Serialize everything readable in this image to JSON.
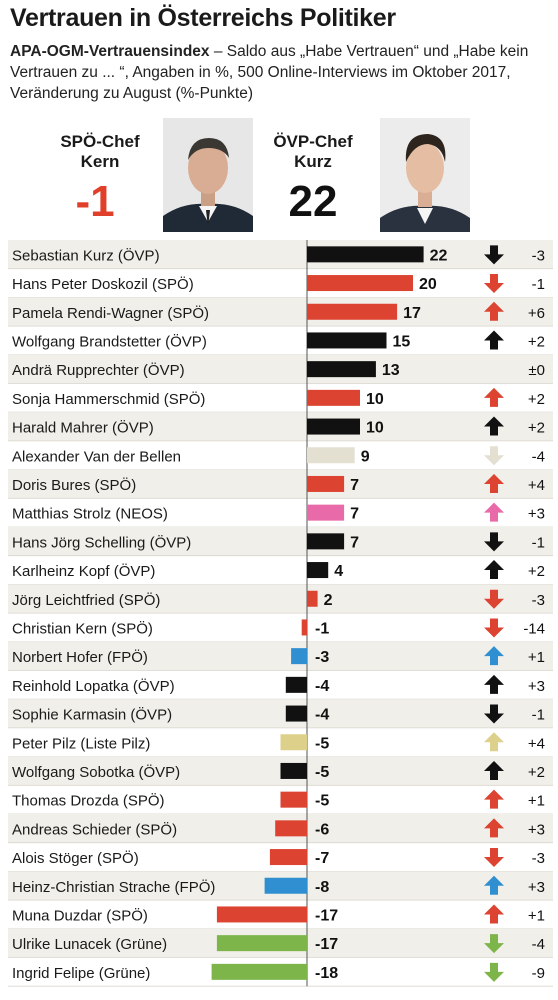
{
  "header": {
    "title": "Vertrauen in Österreichs Politiker",
    "subtitle_bold": "APA-OGM-Vertrauensindex",
    "subtitle_text": " – Saldo aus „Habe Vertrauen“ und „Habe kein Vertrauen zu ... “, Angaben in %, 500 Online-Interviews im Oktober 2017, Veränderung zu August (%-Punkte)"
  },
  "leaders": [
    {
      "label_line1": "SPÖ-Chef",
      "label_line2": "Kern",
      "value": "-1",
      "value_color": "#e0402a"
    },
    {
      "label_line1": "ÖVP-Chef",
      "label_line2": "Kurz",
      "value": "22",
      "value_color": "#111111"
    }
  ],
  "colors": {
    "OEVP": "#111111",
    "SPOE": "#dc4330",
    "GRUENE": "#7db54a",
    "NEOS": "#e86aa8",
    "FPOE": "#2f8fd0",
    "PILZ": "#ddd08a",
    "VDB": "#e3e0d2",
    "row_bg": "#f1efe9",
    "axis": "#555555"
  },
  "chart_data": {
    "type": "bar",
    "orientation": "horizontal",
    "categories": [
      "Sebastian Kurz (ÖVP)",
      "Hans Peter Doskozil (SPÖ)",
      "Pamela Rendi-Wagner (SPÖ)",
      "Wolfgang Brandstetter (ÖVP)",
      "Andrä Rupprechter (ÖVP)",
      "Sonja Hammerschmid (SPÖ)",
      "Harald Mahrer (ÖVP)",
      "Alexander Van der Bellen",
      "Doris Bures (SPÖ)",
      "Matthias Strolz (NEOS)",
      "Hans Jörg Schelling (ÖVP)",
      "Karlheinz Kopf (ÖVP)",
      "Jörg Leichtfried (SPÖ)",
      "Christian Kern (SPÖ)",
      "Norbert Hofer (FPÖ)",
      "Reinhold Lopatka (ÖVP)",
      "Sophie Karmasin (ÖVP)",
      "Peter Pilz (Liste Pilz)",
      "Wolfgang Sobotka (ÖVP)",
      "Thomas Drozda (SPÖ)",
      "Andreas Schieder (SPÖ)",
      "Alois Stöger (SPÖ)",
      "Heinz-Christian Strache (FPÖ)",
      "Muna Duzdar (SPÖ)",
      "Ulrike Lunacek (Grüne)",
      "Ingrid Felipe (Grüne)"
    ],
    "values": [
      22,
      20,
      17,
      15,
      13,
      10,
      10,
      9,
      7,
      7,
      7,
      4,
      2,
      -1,
      -3,
      -4,
      -4,
      -5,
      -5,
      -5,
      -6,
      -7,
      -8,
      -17,
      -17,
      -18
    ],
    "value_labels": [
      "22",
      "20",
      "17",
      "15",
      "13",
      "10",
      "10",
      "9",
      "7",
      "7",
      "7",
      "4",
      "2",
      "-1",
      "-3",
      "-4",
      "-4",
      "-5",
      "-5",
      "-5",
      "-6",
      "-7",
      "-8",
      "-17",
      "-17",
      "-18"
    ],
    "parties": [
      "OEVP",
      "SPOE",
      "SPOE",
      "OEVP",
      "OEVP",
      "SPOE",
      "OEVP",
      "VDB",
      "SPOE",
      "NEOS",
      "OEVP",
      "OEVP",
      "SPOE",
      "SPOE",
      "FPOE",
      "OEVP",
      "OEVP",
      "PILZ",
      "OEVP",
      "SPOE",
      "SPOE",
      "SPOE",
      "FPOE",
      "SPOE",
      "GRUENE",
      "GRUENE"
    ],
    "change": [
      -3,
      -1,
      6,
      2,
      0,
      2,
      2,
      -4,
      4,
      3,
      -1,
      2,
      -3,
      -14,
      1,
      3,
      -1,
      4,
      2,
      1,
      3,
      -3,
      3,
      1,
      -4,
      -9
    ],
    "change_labels": [
      "-3",
      "-1",
      "+6",
      "+2",
      "±0",
      "+2",
      "+2",
      "-4",
      "+4",
      "+3",
      "-1",
      "+2",
      "-3",
      "-14",
      "+1",
      "+3",
      "-1",
      "+4",
      "+2",
      "+1",
      "+3",
      "-3",
      "+3",
      "+1",
      "-4",
      "-9"
    ],
    "xlim": [
      -18,
      22
    ]
  }
}
